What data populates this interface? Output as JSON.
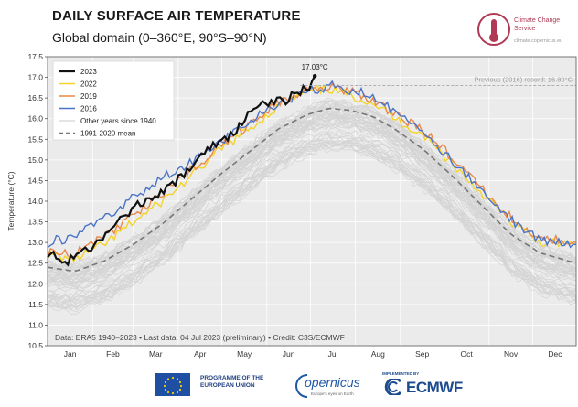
{
  "header": {
    "title": "DAILY SURFACE AIR TEMPERATURE",
    "subtitle": "Global domain (0–360°E, 90°S–90°N)"
  },
  "branding": {
    "c3s_name": "Climate Change Service",
    "c3s_url": "climate.copernicus.eu",
    "eu_text": "PROGRAMME OF THE EUROPEAN UNION",
    "copernicus": "opernicus",
    "copernicus_sub": "Europe's eyes on Earth",
    "ecmwf_impl": "IMPLEMENTED BY",
    "ecmwf": "ECMWF"
  },
  "colors": {
    "y2023": "#111111",
    "y2022": "#f2d42a",
    "y2019": "#e8894a",
    "y2016": "#4a73c8",
    "other": "#d4d4d4",
    "mean": "#777777",
    "background": "#ebebeb"
  },
  "chart_data": {
    "type": "line",
    "ylabel": "Temperature (°C)",
    "ylim": [
      10.5,
      17.5
    ],
    "yticks": [
      "10.5",
      "11.0",
      "11.5",
      "12.0",
      "12.5",
      "13.0",
      "13.5",
      "14.0",
      "14.5",
      "15.0",
      "15.5",
      "16.0",
      "16.5",
      "17.0",
      "17.5"
    ],
    "month_labels": [
      "Jan",
      "Feb",
      "Mar",
      "Apr",
      "May",
      "Jun",
      "Jul",
      "Aug",
      "Sep",
      "Oct",
      "Nov",
      "Dec"
    ],
    "record_label": "Previous (2016) record: 16.80°C",
    "record_value": 16.8,
    "annotation": "17.03°C",
    "annotation_day": 185,
    "credit": "Data: ERA5 1940–2023 • Last data: 04 Jul 2023 (preliminary) • Credit: C3S/ECMWF",
    "legend": [
      "2023",
      "2022",
      "2019",
      "2016",
      "Other years since 1940",
      "1991-2020 mean"
    ],
    "series": [
      {
        "name": "2023",
        "x": [
          1,
          15,
          30,
          45,
          60,
          75,
          90,
          100,
          110,
          120,
          130,
          140,
          150,
          158,
          165,
          172,
          178,
          181,
          183,
          185
        ],
        "values": [
          12.75,
          12.55,
          12.85,
          13.3,
          13.85,
          14.05,
          14.5,
          14.8,
          15.25,
          15.45,
          15.7,
          16.1,
          16.35,
          16.45,
          16.45,
          16.6,
          16.7,
          16.72,
          16.9,
          17.03
        ]
      },
      {
        "name": "2022",
        "x": [
          1,
          20,
          40,
          60,
          80,
          100,
          120,
          140,
          160,
          180,
          195,
          210,
          225,
          240,
          260,
          280,
          300,
          320,
          340,
          365
        ],
        "values": [
          12.7,
          12.6,
          12.95,
          13.5,
          14.0,
          14.6,
          15.25,
          15.75,
          16.3,
          16.65,
          16.72,
          16.55,
          16.4,
          16.0,
          15.6,
          14.9,
          14.2,
          13.5,
          13.0,
          12.95
        ]
      },
      {
        "name": "2019",
        "x": [
          1,
          20,
          40,
          60,
          80,
          100,
          120,
          140,
          160,
          180,
          195,
          210,
          225,
          240,
          260,
          280,
          300,
          320,
          340,
          365
        ],
        "values": [
          12.75,
          12.75,
          13.15,
          13.65,
          14.2,
          14.75,
          15.35,
          15.85,
          16.4,
          16.7,
          16.78,
          16.65,
          16.45,
          16.1,
          15.7,
          15.05,
          14.3,
          13.6,
          13.1,
          13.0
        ]
      },
      {
        "name": "2016",
        "x": [
          1,
          20,
          40,
          60,
          80,
          100,
          120,
          140,
          160,
          180,
          195,
          210,
          225,
          240,
          260,
          280,
          300,
          320,
          340,
          365
        ],
        "values": [
          13.0,
          13.15,
          13.55,
          14.1,
          14.55,
          14.95,
          15.45,
          15.9,
          16.4,
          16.65,
          16.8,
          16.7,
          16.55,
          16.2,
          15.6,
          14.95,
          14.25,
          13.55,
          13.05,
          12.95
        ]
      },
      {
        "name": "1991-2020 mean",
        "x": [
          1,
          20,
          40,
          60,
          80,
          100,
          120,
          140,
          160,
          180,
          195,
          210,
          225,
          240,
          260,
          280,
          300,
          320,
          340,
          365
        ],
        "values": [
          12.4,
          12.3,
          12.55,
          12.95,
          13.45,
          14.05,
          14.65,
          15.2,
          15.75,
          16.1,
          16.25,
          16.2,
          16.05,
          15.75,
          15.25,
          14.6,
          13.9,
          13.2,
          12.75,
          12.5
        ]
      }
    ]
  }
}
